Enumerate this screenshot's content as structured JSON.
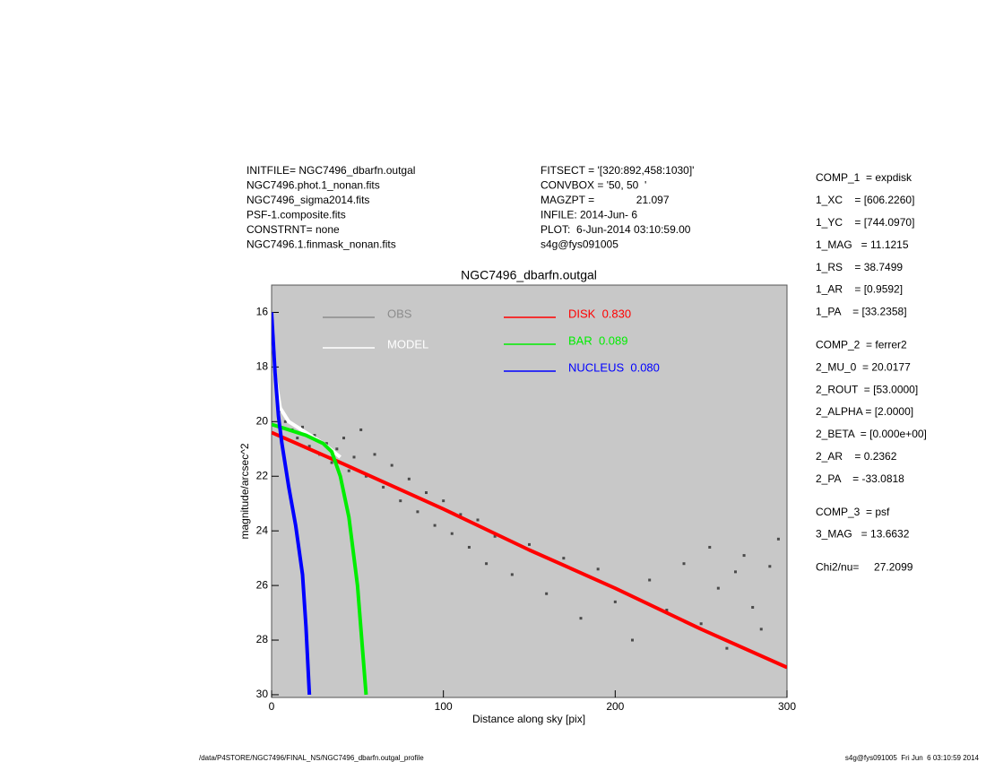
{
  "chart_data": {
    "type": "scatter",
    "title": "NGC7496_dbarfn.outgal",
    "x_label": "Distance along sky [pix]",
    "y_label": "magnitude/arcsec^2",
    "xlim": [
      0,
      300
    ],
    "ylim": [
      30.1,
      15
    ],
    "xticks": [
      0,
      100,
      200,
      300
    ],
    "yticks": [
      16,
      18,
      20,
      22,
      24,
      26,
      28,
      30
    ],
    "background": "#c8c8c8",
    "series": [
      {
        "name": "OBS",
        "color": "#4a4a4a",
        "legend_color": "#8c8c8c",
        "style": "points",
        "x": [
          5,
          8,
          12,
          15,
          18,
          22,
          25,
          28,
          32,
          35,
          38,
          42,
          45,
          48,
          52,
          55,
          60,
          65,
          70,
          75,
          80,
          85,
          90,
          95,
          100,
          105,
          110,
          115,
          120,
          125,
          130,
          140,
          150,
          160,
          170,
          180,
          190,
          200,
          210,
          220,
          230,
          240,
          250,
          255,
          260,
          265,
          270,
          275,
          280,
          285,
          290,
          295
        ],
        "values": [
          19.6,
          20.0,
          20.3,
          20.6,
          20.2,
          20.9,
          20.5,
          21.2,
          20.8,
          21.5,
          21.0,
          20.6,
          21.8,
          21.3,
          20.3,
          22.0,
          21.2,
          22.4,
          21.6,
          22.9,
          22.1,
          23.3,
          22.6,
          23.8,
          22.9,
          24.1,
          23.4,
          24.6,
          23.6,
          25.2,
          24.2,
          25.6,
          24.5,
          26.3,
          25.0,
          27.2,
          25.4,
          26.6,
          28.0,
          25.8,
          26.9,
          25.2,
          27.4,
          24.6,
          26.1,
          28.3,
          25.5,
          24.9,
          26.8,
          27.6,
          25.3,
          24.3
        ]
      },
      {
        "name": "MODEL",
        "color": "#ffffff",
        "style": "line",
        "x": [
          0,
          2,
          5,
          10,
          20,
          30,
          40
        ],
        "values": [
          16,
          18.3,
          19.5,
          20.0,
          20.4,
          20.8,
          21.3
        ]
      },
      {
        "name": "DISK  0.830",
        "color": "#ff0000",
        "style": "line",
        "x": [
          0,
          40,
          100,
          150,
          200,
          250,
          300
        ],
        "values": [
          20.4,
          21.5,
          23.2,
          24.7,
          26.1,
          27.6,
          29.0
        ]
      },
      {
        "name": "BAR  0.089",
        "color": "#00ee00",
        "style": "line",
        "x": [
          0,
          10,
          20,
          30,
          35,
          40,
          45,
          50,
          55
        ],
        "values": [
          20.1,
          20.3,
          20.5,
          20.8,
          21.1,
          22.0,
          23.5,
          26.0,
          30.0
        ]
      },
      {
        "name": "NUCLEUS  0.080",
        "color": "#0000ff",
        "style": "line",
        "x": [
          0,
          2,
          4,
          6,
          8,
          10,
          14,
          18,
          20,
          22
        ],
        "values": [
          16.0,
          18.2,
          19.8,
          20.8,
          21.6,
          22.4,
          23.8,
          25.6,
          27.5,
          30.0
        ]
      }
    ]
  },
  "header": {
    "left": [
      "INITFILE= NGC7496_dbarfn.outgal",
      "NGC7496.phot.1_nonan.fits",
      "NGC7496_sigma2014.fits",
      "PSF-1.composite.fits",
      "CONSTRNT= none",
      "NGC7496.1.finmask_nonan.fits"
    ],
    "middle": [
      "FITSECT = '[320:892,458:1030]'",
      "CONVBOX = '50, 50  '",
      "MAGZPT =              21.097",
      "INFILE: 2014-Jun- 6",
      "PLOT:  6-Jun-2014 03:10:59.00",
      "s4g@fys091005"
    ]
  },
  "parameters": [
    [
      "COMP_1  = expdisk",
      "1_XC    = [606.2260]",
      "1_YC    = [744.0970]",
      "1_MAG   = 11.1215",
      "1_RS    = 38.7499",
      "1_AR    = [0.9592]",
      "1_PA    = [33.2358]"
    ],
    [
      "COMP_2  = ferrer2",
      "2_MU_0  = 20.0177",
      "2_ROUT  = [53.0000]",
      "2_ALPHA = [2.0000]",
      "2_BETA  = [0.000e+00]",
      "2_AR    = 0.2362",
      "2_PA    = -33.0818"
    ],
    [
      "COMP_3  = psf",
      "3_MAG   = 13.6632"
    ],
    [
      "Chi2/nu=     27.2099"
    ]
  ],
  "footer": {
    "left": "/data/P4STORE/NGC7496/FINAL_NS/NGC7496_dbarfn.outgal_profile",
    "right": "s4g@fys091005  Fri Jun  6 03:10:59 2014"
  }
}
